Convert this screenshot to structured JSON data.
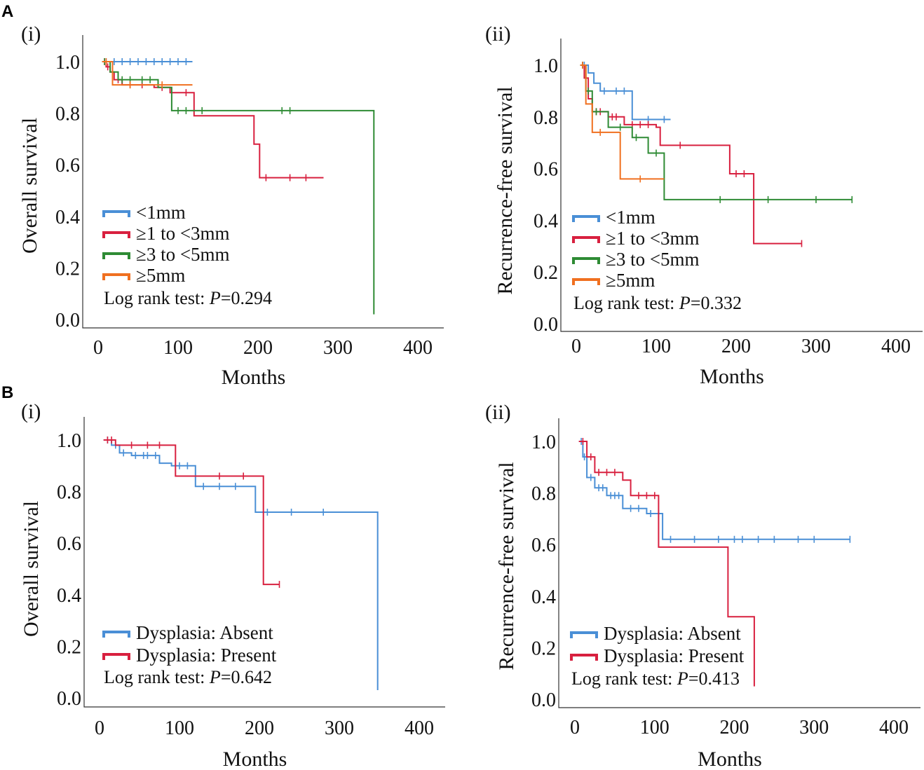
{
  "figure": {
    "panel_labels": [
      "A",
      "B"
    ]
  },
  "chart_data": [
    {
      "id": "A-i",
      "type": "line",
      "subtitle": "(i)",
      "xlabel": "Months",
      "ylabel": "Overall survival",
      "xlim": [
        0,
        400
      ],
      "ylim": [
        0,
        1.0
      ],
      "xticks": [
        "0",
        "100",
        "200",
        "300",
        "400"
      ],
      "yticks": [
        "0.0",
        "0.2",
        "0.4",
        "0.6",
        "0.8",
        "1.0"
      ],
      "legend": {
        "position": "bottom-left"
      },
      "annotation": {
        "prefix": "Log rank test: ",
        "p": "P",
        "value": "=0.294"
      },
      "series": [
        {
          "name": "<1mm",
          "color": "#4a8fd6",
          "steps": [
            [
              5,
              1.0
            ],
            [
              118,
              1.0
            ]
          ],
          "censor": [
            10,
            20,
            30,
            40,
            50,
            60,
            70,
            80,
            90,
            100,
            110
          ]
        },
        {
          "name": "≥1 to <3mm",
          "color": "#d8203f",
          "steps": [
            [
              5,
              1.0
            ],
            [
              10,
              0.98
            ],
            [
              15,
              0.96
            ],
            [
              20,
              0.93
            ],
            [
              30,
              0.91
            ],
            [
              70,
              0.9
            ],
            [
              90,
              0.88
            ],
            [
              120,
              0.79
            ],
            [
              195,
              0.68
            ],
            [
              202,
              0.55
            ],
            [
              282,
              0.55
            ]
          ],
          "censor": [
            8,
            12,
            25,
            40,
            55,
            80,
            110,
            210,
            240,
            260
          ]
        },
        {
          "name": "≥3 to <5mm",
          "color": "#2e8b34",
          "steps": [
            [
              5,
              1.0
            ],
            [
              15,
              0.96
            ],
            [
              25,
              0.93
            ],
            [
              75,
              0.9
            ],
            [
              92,
              0.81
            ],
            [
              345,
              0.81
            ],
            [
              345,
              0.02
            ]
          ],
          "censor": [
            8,
            18,
            30,
            40,
            55,
            65,
            100,
            110,
            130,
            230,
            240
          ]
        },
        {
          "name": "≥5mm",
          "color": "#f07020",
          "steps": [
            [
              5,
              1.0
            ],
            [
              18,
              0.91
            ],
            [
              118,
              0.91
            ]
          ],
          "censor": [
            10,
            40,
            80
          ]
        }
      ]
    },
    {
      "id": "A-ii",
      "type": "line",
      "subtitle": "(ii)",
      "xlabel": "Months",
      "ylabel": "Recurrence-free survival",
      "xlim": [
        0,
        400
      ],
      "ylim": [
        0,
        1.0
      ],
      "xticks": [
        "0",
        "100",
        "200",
        "300",
        "400"
      ],
      "yticks": [
        "0.0",
        "0.2",
        "0.4",
        "0.6",
        "0.8",
        "1.0"
      ],
      "legend": {
        "position": "bottom-left"
      },
      "annotation": {
        "prefix": "Log rank test: ",
        "p": "P",
        "value": "=0.332"
      },
      "series": [
        {
          "name": "<1mm",
          "color": "#4a8fd6",
          "steps": [
            [
              5,
              1.0
            ],
            [
              15,
              0.97
            ],
            [
              22,
              0.93
            ],
            [
              30,
              0.9
            ],
            [
              70,
              0.79
            ],
            [
              118,
              0.79
            ]
          ],
          "censor": [
            10,
            35,
            50,
            60,
            90,
            110
          ]
        },
        {
          "name": "≥1 to <3mm",
          "color": "#d8203f",
          "steps": [
            [
              5,
              1.0
            ],
            [
              10,
              0.95
            ],
            [
              15,
              0.87
            ],
            [
              20,
              0.82
            ],
            [
              40,
              0.8
            ],
            [
              60,
              0.77
            ],
            [
              100,
              0.76
            ],
            [
              105,
              0.69
            ],
            [
              190,
              0.69
            ],
            [
              192,
              0.58
            ],
            [
              222,
              0.58
            ],
            [
              222,
              0.31
            ],
            [
              282,
              0.31
            ]
          ],
          "censor": [
            8,
            12,
            25,
            30,
            45,
            50,
            70,
            80,
            90,
            130,
            200,
            210,
            282
          ]
        },
        {
          "name": "≥3 to <5mm",
          "color": "#2e8b34",
          "steps": [
            [
              5,
              1.0
            ],
            [
              12,
              0.9
            ],
            [
              20,
              0.82
            ],
            [
              40,
              0.76
            ],
            [
              70,
              0.72
            ],
            [
              90,
              0.66
            ],
            [
              110,
              0.48
            ],
            [
              345,
              0.48
            ]
          ],
          "censor": [
            8,
            15,
            25,
            55,
            75,
            100,
            180,
            240,
            300,
            345
          ]
        },
        {
          "name": "≥5mm",
          "color": "#f07020",
          "steps": [
            [
              5,
              1.0
            ],
            [
              12,
              0.85
            ],
            [
              20,
              0.74
            ],
            [
              55,
              0.56
            ],
            [
              110,
              0.56
            ]
          ],
          "censor": [
            8,
            30,
            80
          ]
        }
      ]
    },
    {
      "id": "B-i",
      "type": "line",
      "subtitle": "(i)",
      "xlabel": "Months",
      "ylabel": "Overall survival",
      "xlim": [
        0,
        400
      ],
      "ylim": [
        0,
        1.0
      ],
      "xticks": [
        "0",
        "100",
        "200",
        "300",
        "400"
      ],
      "yticks": [
        "0.0",
        "0.2",
        "0.4",
        "0.6",
        "0.8",
        "1.0"
      ],
      "legend": {
        "position": "bottom-left"
      },
      "annotation": {
        "prefix": "Log rank test: ",
        "p": "P",
        "value": "=0.642"
      },
      "series": [
        {
          "name": "Dysplasia: Absent",
          "color": "#4a8fd6",
          "steps": [
            [
              5,
              1.0
            ],
            [
              15,
              0.98
            ],
            [
              25,
              0.95
            ],
            [
              40,
              0.94
            ],
            [
              75,
              0.91
            ],
            [
              90,
              0.9
            ],
            [
              120,
              0.82
            ],
            [
              195,
              0.72
            ],
            [
              345,
              0.72
            ],
            [
              348,
              0.45
            ],
            [
              348,
              0.03
            ]
          ],
          "censor": [
            10,
            20,
            30,
            45,
            55,
            60,
            70,
            100,
            110,
            130,
            150,
            170,
            210,
            240,
            280
          ]
        },
        {
          "name": "Dysplasia: Present",
          "color": "#d8203f",
          "steps": [
            [
              5,
              1.0
            ],
            [
              20,
              0.98
            ],
            [
              95,
              0.86
            ],
            [
              205,
              0.44
            ],
            [
              225,
              0.44
            ]
          ],
          "censor": [
            10,
            15,
            40,
            60,
            75,
            150,
            180,
            225
          ]
        }
      ]
    },
    {
      "id": "B-ii",
      "type": "line",
      "subtitle": "(ii)",
      "xlabel": "Months",
      "ylabel": "Recurrence-free survival",
      "xlim": [
        0,
        400
      ],
      "ylim": [
        0,
        1.0
      ],
      "xticks": [
        "0",
        "100",
        "200",
        "300",
        "400"
      ],
      "yticks": [
        "0.0",
        "0.2",
        "0.4",
        "0.6",
        "0.8",
        "1.0"
      ],
      "legend": {
        "position": "bottom-left"
      },
      "annotation": {
        "prefix": "Log rank test: ",
        "p": "P",
        "value": "=0.413"
      },
      "series": [
        {
          "name": "Dysplasia: Absent",
          "color": "#4a8fd6",
          "steps": [
            [
              5,
              1.0
            ],
            [
              10,
              0.94
            ],
            [
              15,
              0.86
            ],
            [
              25,
              0.82
            ],
            [
              40,
              0.79
            ],
            [
              60,
              0.74
            ],
            [
              90,
              0.72
            ],
            [
              110,
              0.62
            ],
            [
              345,
              0.62
            ]
          ],
          "censor": [
            8,
            12,
            20,
            30,
            35,
            45,
            50,
            55,
            70,
            80,
            95,
            105,
            120,
            150,
            180,
            200,
            210,
            230,
            250,
            280,
            300,
            345
          ]
        },
        {
          "name": "Dysplasia: Present",
          "color": "#d8203f",
          "steps": [
            [
              5,
              1.0
            ],
            [
              15,
              0.94
            ],
            [
              25,
              0.88
            ],
            [
              60,
              0.85
            ],
            [
              70,
              0.79
            ],
            [
              105,
              0.59
            ],
            [
              190,
              0.59
            ],
            [
              192,
              0.32
            ],
            [
              225,
              0.32
            ],
            [
              225,
              0.05
            ]
          ],
          "censor": [
            10,
            20,
            30,
            40,
            50,
            80,
            90,
            100
          ]
        }
      ]
    }
  ]
}
